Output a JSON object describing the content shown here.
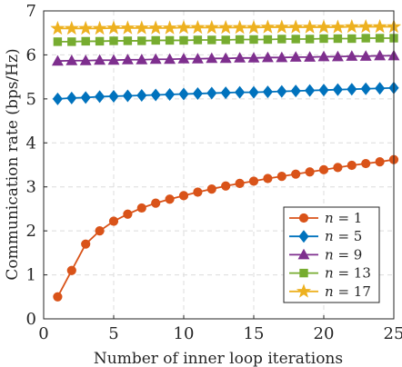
{
  "chart_data": {
    "type": "line",
    "title": "",
    "xlabel": "Number of inner loop iterations",
    "ylabel": "Communication rate (bps/Hz)",
    "xlim": [
      0,
      25
    ],
    "ylim": [
      0,
      7
    ],
    "xticks": [
      0,
      5,
      10,
      15,
      20,
      25
    ],
    "yticks": [
      0,
      1,
      2,
      3,
      4,
      5,
      6,
      7
    ],
    "grid": true,
    "legend_position": "bottom-right",
    "x": [
      1,
      2,
      3,
      4,
      5,
      6,
      7,
      8,
      9,
      10,
      11,
      12,
      13,
      14,
      15,
      16,
      17,
      18,
      19,
      20,
      21,
      22,
      23,
      24,
      25
    ],
    "series": [
      {
        "var": "n",
        "eq": " = 1",
        "color": "#D95319",
        "marker": "circle",
        "values": [
          0.5,
          1.1,
          1.7,
          2.0,
          2.22,
          2.38,
          2.52,
          2.63,
          2.72,
          2.8,
          2.88,
          2.95,
          3.02,
          3.08,
          3.13,
          3.19,
          3.24,
          3.29,
          3.34,
          3.39,
          3.44,
          3.49,
          3.53,
          3.57,
          3.62
        ]
      },
      {
        "var": "n",
        "eq": " = 5",
        "color": "#0072BD",
        "marker": "diamond",
        "values": [
          5.0,
          5.02,
          5.03,
          5.05,
          5.06,
          5.07,
          5.08,
          5.09,
          5.1,
          5.11,
          5.12,
          5.13,
          5.14,
          5.15,
          5.15,
          5.16,
          5.17,
          5.18,
          5.19,
          5.2,
          5.21,
          5.22,
          5.23,
          5.24,
          5.25
        ]
      },
      {
        "var": "n",
        "eq": " = 9",
        "color": "#7E2F8E",
        "marker": "triangle",
        "values": [
          5.86,
          5.87,
          5.87,
          5.88,
          5.88,
          5.89,
          5.89,
          5.9,
          5.9,
          5.91,
          5.91,
          5.92,
          5.92,
          5.93,
          5.93,
          5.94,
          5.94,
          5.95,
          5.95,
          5.96,
          5.96,
          5.97,
          5.97,
          5.98,
          5.98
        ]
      },
      {
        "var": "n",
        "eq": " = 13",
        "color": "#77AC30",
        "marker": "square",
        "values": [
          6.3,
          6.3,
          6.31,
          6.31,
          6.32,
          6.32,
          6.32,
          6.33,
          6.33,
          6.33,
          6.34,
          6.34,
          6.34,
          6.35,
          6.35,
          6.35,
          6.36,
          6.36,
          6.36,
          6.37,
          6.37,
          6.37,
          6.38,
          6.38,
          6.38
        ]
      },
      {
        "var": "n",
        "eq": " = 17",
        "color": "#EDB120",
        "marker": "star",
        "values": [
          6.6,
          6.6,
          6.6,
          6.6,
          6.61,
          6.61,
          6.61,
          6.61,
          6.61,
          6.62,
          6.62,
          6.62,
          6.62,
          6.62,
          6.62,
          6.63,
          6.63,
          6.63,
          6.63,
          6.63,
          6.63,
          6.64,
          6.64,
          6.64,
          6.64
        ]
      }
    ]
  }
}
